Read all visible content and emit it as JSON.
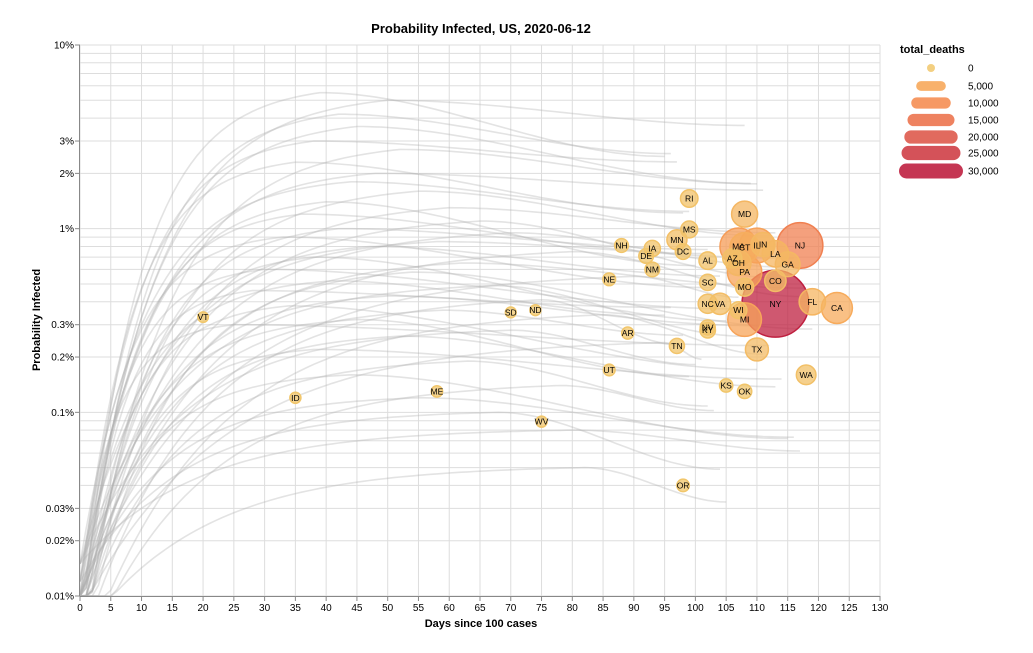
{
  "chart_data": {
    "type": "scatter",
    "title": "Probability Infected, US, 2020-06-12",
    "xlabel": "Days since 100 cases",
    "ylabel": "Probability Infected",
    "xlim": [
      0,
      130
    ],
    "ylim": [
      0.0001,
      0.1
    ],
    "yscale": "log",
    "grid": true,
    "x_ticks": [
      0,
      5,
      10,
      15,
      20,
      25,
      30,
      35,
      40,
      45,
      50,
      55,
      60,
      65,
      70,
      75,
      80,
      85,
      90,
      95,
      100,
      105,
      110,
      115,
      120,
      125,
      130
    ],
    "y_ticks": [
      {
        "value": 0.0001,
        "label": "0.01%"
      },
      {
        "value": 0.0002,
        "label": "0.02%"
      },
      {
        "value": 0.0003,
        "label": "0.03%"
      },
      {
        "value": 0.001,
        "label": "0.1%"
      },
      {
        "value": 0.002,
        "label": "0.2%"
      },
      {
        "value": 0.003,
        "label": "0.3%"
      },
      {
        "value": 0.01,
        "label": "1%"
      },
      {
        "value": 0.02,
        "label": "2%"
      },
      {
        "value": 0.03,
        "label": "3%"
      },
      {
        "value": 0.1,
        "label": "10%"
      }
    ],
    "size_legend": {
      "title": "total_deaths",
      "entries": [
        {
          "label": "0",
          "value": 0,
          "color": "#f1c76b"
        },
        {
          "label": "5,000",
          "value": 5000,
          "color": "#f7a95b"
        },
        {
          "label": "10,000",
          "value": 10000,
          "color": "#f58e53"
        },
        {
          "label": "15,000",
          "value": 15000,
          "color": "#ec744f"
        },
        {
          "label": "20,000",
          "value": 20000,
          "color": "#de5a4c"
        },
        {
          "label": "25,000",
          "value": 25000,
          "color": "#cf3f47"
        },
        {
          "label": "30,000",
          "value": 30000,
          "color": "#bf2040"
        }
      ],
      "placement": "top-right"
    },
    "points": [
      {
        "state": "RI",
        "x": 99,
        "y": 0.0146,
        "deaths": 800
      },
      {
        "state": "MD",
        "x": 108,
        "y": 0.012,
        "deaths": 2900
      },
      {
        "state": "MS",
        "x": 99,
        "y": 0.0099,
        "deaths": 700
      },
      {
        "state": "MN",
        "x": 97,
        "y": 0.0087,
        "deaths": 1300
      },
      {
        "state": "NH",
        "x": 88,
        "y": 0.0081,
        "deaths": 300
      },
      {
        "state": "IA",
        "x": 93,
        "y": 0.0078,
        "deaths": 600
      },
      {
        "state": "DC",
        "x": 98,
        "y": 0.0075,
        "deaths": 500
      },
      {
        "state": "DE",
        "x": 92,
        "y": 0.0071,
        "deaths": 400
      },
      {
        "state": "MA",
        "x": 107,
        "y": 0.008,
        "deaths": 7500
      },
      {
        "state": "CT",
        "x": 108,
        "y": 0.0079,
        "deaths": 4200
      },
      {
        "state": "IL",
        "x": 110,
        "y": 0.0081,
        "deaths": 6400
      },
      {
        "state": "IN",
        "x": 111,
        "y": 0.0082,
        "deaths": 2300
      },
      {
        "state": "NJ",
        "x": 117,
        "y": 0.0081,
        "deaths": 12700
      },
      {
        "state": "LA",
        "x": 113,
        "y": 0.0073,
        "deaths": 3000
      },
      {
        "state": "AZ",
        "x": 106,
        "y": 0.0069,
        "deaths": 1100
      },
      {
        "state": "AL",
        "x": 102,
        "y": 0.0067,
        "deaths": 800
      },
      {
        "state": "OH",
        "x": 107,
        "y": 0.0065,
        "deaths": 2600
      },
      {
        "state": "GA",
        "x": 115,
        "y": 0.0064,
        "deaths": 2500
      },
      {
        "state": "NM",
        "x": 93,
        "y": 0.006,
        "deaths": 400
      },
      {
        "state": "PA",
        "x": 108,
        "y": 0.0058,
        "deaths": 6200
      },
      {
        "state": "NE",
        "x": 86,
        "y": 0.0053,
        "deaths": 200
      },
      {
        "state": "SC",
        "x": 102,
        "y": 0.0051,
        "deaths": 600
      },
      {
        "state": "CO",
        "x": 113,
        "y": 0.0052,
        "deaths": 1600
      },
      {
        "state": "MO",
        "x": 108,
        "y": 0.0048,
        "deaths": 900
      },
      {
        "state": "NY",
        "x": 113,
        "y": 0.0039,
        "deaths": 30800
      },
      {
        "state": "FL",
        "x": 119,
        "y": 0.004,
        "deaths": 3000
      },
      {
        "state": "CA",
        "x": 123,
        "y": 0.0037,
        "deaths": 4700
      },
      {
        "state": "NC",
        "x": 102,
        "y": 0.0039,
        "deaths": 1100
      },
      {
        "state": "VA",
        "x": 104,
        "y": 0.0039,
        "deaths": 1600
      },
      {
        "state": "WI",
        "x": 107,
        "y": 0.0036,
        "deaths": 700
      },
      {
        "state": "MI",
        "x": 108,
        "y": 0.0032,
        "deaths": 5900
      },
      {
        "state": "VT",
        "x": 20,
        "y": 0.0033,
        "deaths": 55
      },
      {
        "state": "SD",
        "x": 70,
        "y": 0.0035,
        "deaths": 70
      },
      {
        "state": "ND",
        "x": 74,
        "y": 0.0036,
        "deaths": 75
      },
      {
        "state": "NV",
        "x": 102,
        "y": 0.0029,
        "deaths": 450
      },
      {
        "state": "KY",
        "x": 102,
        "y": 0.0028,
        "deaths": 500
      },
      {
        "state": "AR",
        "x": 89,
        "y": 0.0027,
        "deaths": 150
      },
      {
        "state": "TN",
        "x": 97,
        "y": 0.0023,
        "deaths": 450
      },
      {
        "state": "TX",
        "x": 110,
        "y": 0.0022,
        "deaths": 2000
      },
      {
        "state": "UT",
        "x": 86,
        "y": 0.0017,
        "deaths": 120
      },
      {
        "state": "WA",
        "x": 118,
        "y": 0.0016,
        "deaths": 1200
      },
      {
        "state": "KS",
        "x": 105,
        "y": 0.0014,
        "deaths": 250
      },
      {
        "state": "ME",
        "x": 58,
        "y": 0.0013,
        "deaths": 100
      },
      {
        "state": "OK",
        "x": 108,
        "y": 0.0013,
        "deaths": 350
      },
      {
        "state": "ID",
        "x": 35,
        "y": 0.0012,
        "deaths": 85
      },
      {
        "state": "WV",
        "x": 75,
        "y": 0.00089,
        "deaths": 85
      },
      {
        "state": "OR",
        "x": 98,
        "y": 0.0004,
        "deaths": 180
      }
    ],
    "curve_peaks": [
      {
        "peak_x": 39,
        "peak_y": 0.055,
        "rise": 14
      },
      {
        "peak_x": 50,
        "peak_y": 0.05,
        "rise": 16
      },
      {
        "peak_x": 42,
        "peak_y": 0.042,
        "rise": 13
      },
      {
        "peak_x": 45,
        "peak_y": 0.036,
        "rise": 15
      },
      {
        "peak_x": 38,
        "peak_y": 0.03,
        "rise": 12
      },
      {
        "peak_x": 52,
        "peak_y": 0.027,
        "rise": 17
      },
      {
        "peak_x": 35,
        "peak_y": 0.023,
        "rise": 11
      },
      {
        "peak_x": 48,
        "peak_y": 0.02,
        "rise": 15
      },
      {
        "peak_x": 44,
        "peak_y": 0.018,
        "rise": 14
      },
      {
        "peak_x": 55,
        "peak_y": 0.016,
        "rise": 18
      },
      {
        "peak_x": 40,
        "peak_y": 0.014,
        "rise": 13
      },
      {
        "peak_x": 60,
        "peak_y": 0.013,
        "rise": 20
      },
      {
        "peak_x": 36,
        "peak_y": 0.012,
        "rise": 12
      },
      {
        "peak_x": 65,
        "peak_y": 0.011,
        "rise": 22
      },
      {
        "peak_x": 42,
        "peak_y": 0.01,
        "rise": 14
      },
      {
        "peak_x": 70,
        "peak_y": 0.0095,
        "rise": 24
      },
      {
        "peak_x": 33,
        "peak_y": 0.009,
        "rise": 11
      },
      {
        "peak_x": 58,
        "peak_y": 0.0085,
        "rise": 19
      },
      {
        "peak_x": 47,
        "peak_y": 0.008,
        "rise": 16
      },
      {
        "peak_x": 80,
        "peak_y": 0.0075,
        "rise": 28
      },
      {
        "peak_x": 38,
        "peak_y": 0.007,
        "rise": 13
      },
      {
        "peak_x": 62,
        "peak_y": 0.0065,
        "rise": 21
      },
      {
        "peak_x": 30,
        "peak_y": 0.006,
        "rise": 10
      },
      {
        "peak_x": 54,
        "peak_y": 0.0058,
        "rise": 18
      },
      {
        "peak_x": 90,
        "peak_y": 0.0055,
        "rise": 30
      },
      {
        "peak_x": 41,
        "peak_y": 0.0052,
        "rise": 14
      },
      {
        "peak_x": 67,
        "peak_y": 0.0049,
        "rise": 23
      },
      {
        "peak_x": 28,
        "peak_y": 0.0046,
        "rise": 10
      },
      {
        "peak_x": 50,
        "peak_y": 0.0043,
        "rise": 17
      },
      {
        "peak_x": 75,
        "peak_y": 0.0041,
        "rise": 25
      },
      {
        "peak_x": 34,
        "peak_y": 0.0038,
        "rise": 12
      },
      {
        "peak_x": 59,
        "peak_y": 0.0036,
        "rise": 20
      },
      {
        "peak_x": 85,
        "peak_y": 0.0034,
        "rise": 29
      },
      {
        "peak_x": 45,
        "peak_y": 0.0032,
        "rise": 15
      },
      {
        "peak_x": 25,
        "peak_y": 0.003,
        "rise": 9
      },
      {
        "peak_x": 70,
        "peak_y": 0.0028,
        "rise": 24
      },
      {
        "peak_x": 52,
        "peak_y": 0.0026,
        "rise": 18
      },
      {
        "peak_x": 95,
        "peak_y": 0.0024,
        "rise": 32
      },
      {
        "peak_x": 38,
        "peak_y": 0.0022,
        "rise": 13
      },
      {
        "peak_x": 63,
        "peak_y": 0.0019,
        "rise": 22
      },
      {
        "peak_x": 44,
        "peak_y": 0.0016,
        "rise": 15
      },
      {
        "peak_x": 78,
        "peak_y": 0.0014,
        "rise": 27
      },
      {
        "peak_x": 55,
        "peak_y": 0.0012,
        "rise": 19
      },
      {
        "peak_x": 68,
        "peak_y": 0.001,
        "rise": 23
      },
      {
        "peak_x": 80,
        "peak_y": 0.0008,
        "rise": 28
      },
      {
        "peak_x": 82,
        "peak_y": 0.0005,
        "rise": 28
      }
    ]
  }
}
